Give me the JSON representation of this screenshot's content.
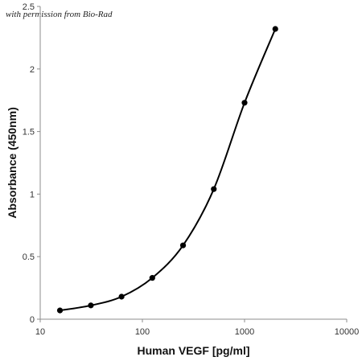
{
  "credit": "with permission from Bio-Rad",
  "colors": {
    "curve": "#000000",
    "markers": "#000000",
    "axes": "#8c8c8c",
    "background": "#ffffff"
  },
  "chart_data": {
    "type": "scatter",
    "title": "",
    "xlabel": "Human VEGF [pg/ml]",
    "ylabel": "Absorbance (450nm)",
    "x_scale": "log",
    "xlim": [
      10,
      10000
    ],
    "ylim": [
      0,
      2.5
    ],
    "x_ticks": [
      10,
      100,
      1000,
      10000
    ],
    "x_tick_labels": [
      "10",
      "100",
      "1000",
      "10000"
    ],
    "y_ticks": [
      0,
      0.5,
      1,
      1.5,
      2,
      2.5
    ],
    "y_tick_labels": [
      "0",
      "0.5",
      "1",
      "1.5",
      "2",
      "2.5"
    ],
    "grid": false,
    "legend": "none",
    "smooth_line": true,
    "series": [
      {
        "x": [
          15.6,
          31.3,
          62.5,
          125,
          250,
          500,
          1000,
          2000
        ],
        "y": [
          0.07,
          0.11,
          0.18,
          0.33,
          0.59,
          1.04,
          1.73,
          2.32
        ]
      }
    ]
  }
}
